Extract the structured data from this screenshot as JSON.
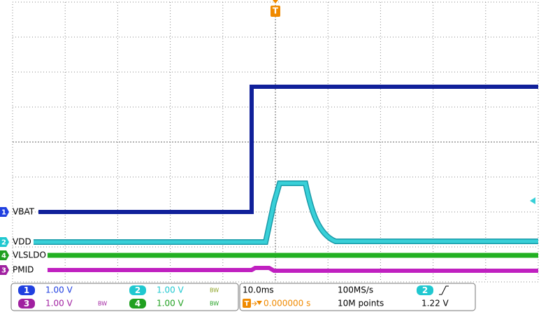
{
  "traces": [
    {
      "channel": "1",
      "label": "VBAT"
    },
    {
      "channel": "2",
      "label": "VDD"
    },
    {
      "channel": "4",
      "label": "VLSLDO"
    },
    {
      "channel": "3",
      "label": "PMID"
    }
  ],
  "trigger_marker": "T",
  "channels": [
    {
      "number": "1",
      "scale": "1.00 V"
    },
    {
      "number": "2",
      "scale": "1.00 V",
      "bw": "BW"
    },
    {
      "number": "3",
      "scale": "1.00 V",
      "bw": "BW"
    },
    {
      "number": "4",
      "scale": "1.00 V",
      "bw": "BW"
    }
  ],
  "timebase": {
    "scale": "10.0ms",
    "sample_rate": "100MS/s",
    "position": "0.000000 s",
    "record_length": "10M points"
  },
  "trigger": {
    "source": "2",
    "level": "1.22 V"
  }
}
